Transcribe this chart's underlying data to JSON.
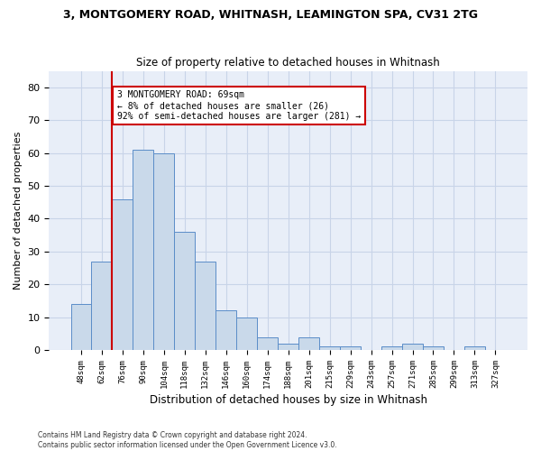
{
  "title": "3, MONTGOMERY ROAD, WHITNASH, LEAMINGTON SPA, CV31 2TG",
  "subtitle": "Size of property relative to detached houses in Whitnash",
  "xlabel": "Distribution of detached houses by size in Whitnash",
  "ylabel": "Number of detached properties",
  "bar_labels": [
    "48sqm",
    "62sqm",
    "76sqm",
    "90sqm",
    "104sqm",
    "118sqm",
    "132sqm",
    "146sqm",
    "160sqm",
    "174sqm",
    "188sqm",
    "201sqm",
    "215sqm",
    "229sqm",
    "243sqm",
    "257sqm",
    "271sqm",
    "285sqm",
    "299sqm",
    "313sqm",
    "327sqm"
  ],
  "bar_values": [
    14,
    27,
    46,
    61,
    60,
    36,
    27,
    12,
    10,
    4,
    2,
    4,
    1,
    1,
    0,
    1,
    2,
    1,
    0,
    1,
    0
  ],
  "bar_color": "#c9d9ea",
  "bar_edgecolor": "#5b8dc8",
  "vline_x": 1.5,
  "vline_color": "#cc0000",
  "ylim": [
    0,
    85
  ],
  "yticks": [
    0,
    10,
    20,
    30,
    40,
    50,
    60,
    70,
    80
  ],
  "annotation_text": "3 MONTGOMERY ROAD: 69sqm\n← 8% of detached houses are smaller (26)\n92% of semi-detached houses are larger (281) →",
  "annotation_box_color": "#cc0000",
  "footer_line1": "Contains HM Land Registry data © Crown copyright and database right 2024.",
  "footer_line2": "Contains public sector information licensed under the Open Government Licence v3.0.",
  "grid_color": "#c8d4e8",
  "background_color": "#e8eef8"
}
